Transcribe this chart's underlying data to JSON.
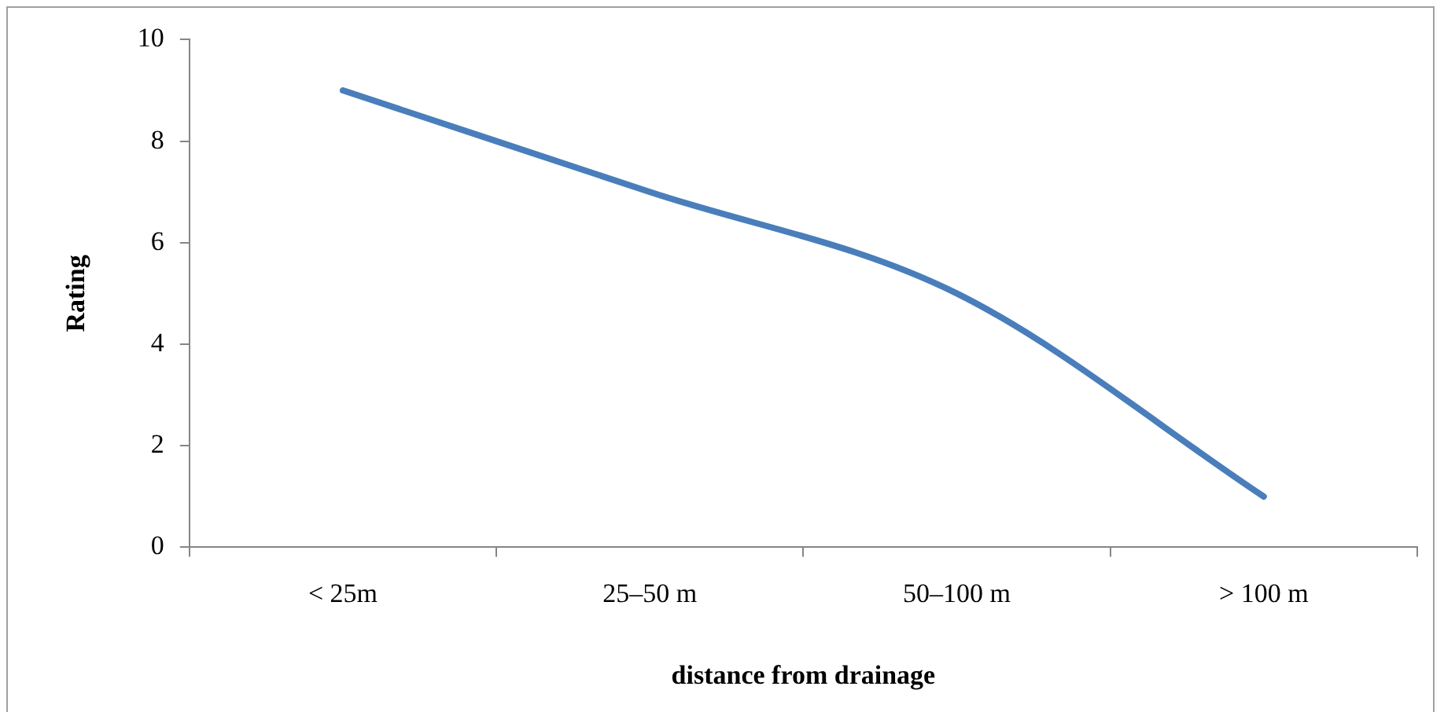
{
  "chart_data": {
    "type": "line",
    "xlabel": "distance from drainage",
    "ylabel": "Rating",
    "categories": [
      "< 25m",
      "25–50 m",
      "50–100 m",
      "> 100 m"
    ],
    "series": [
      {
        "color": "#4a7ebb",
        "values": [
          9,
          7,
          5,
          1
        ]
      }
    ],
    "ylim": [
      0,
      10
    ],
    "yticks": [
      0,
      2,
      4,
      6,
      8,
      10
    ],
    "grid": false,
    "legend": false,
    "marker": "none"
  }
}
